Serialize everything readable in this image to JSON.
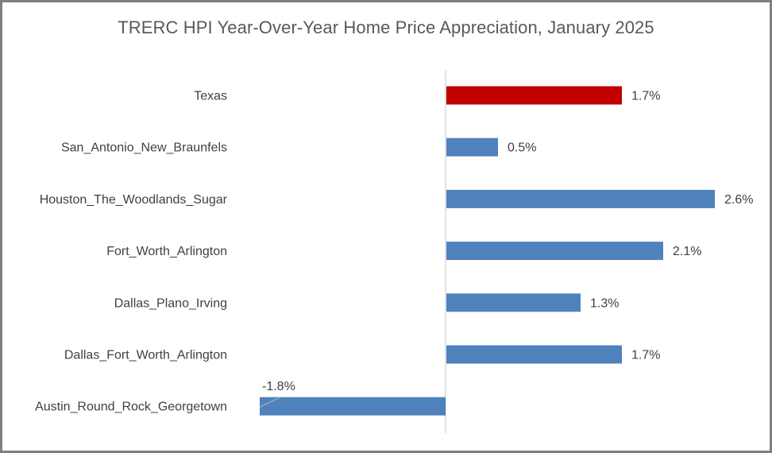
{
  "chart_data": {
    "type": "bar",
    "orientation": "horizontal",
    "title": "TRERC HPI Year-Over-Year Home Price Appreciation, January 2025",
    "xlabel": "",
    "ylabel": "",
    "categories": [
      "Texas",
      "San_Antonio_New_Braunfels",
      "Houston_The_Woodlands_Sugar",
      "Fort_Worth_Arlington",
      "Dallas_Plano_Irving",
      "Dallas_Fort_Worth_Arlington",
      "Austin_Round_Rock_Georgetown"
    ],
    "values": [
      1.7,
      0.5,
      2.6,
      2.1,
      1.3,
      1.7,
      -1.8
    ],
    "data_labels": [
      "1.7%",
      "0.5%",
      "2.6%",
      "2.1%",
      "1.3%",
      "1.7%",
      "-1.8%"
    ],
    "colors": [
      "#c00000",
      "#4f81bd",
      "#4f81bd",
      "#4f81bd",
      "#4f81bd",
      "#4f81bd",
      "#4f81bd"
    ],
    "xlim": [
      -1.8,
      2.6
    ],
    "grid": false,
    "legend": "none"
  }
}
